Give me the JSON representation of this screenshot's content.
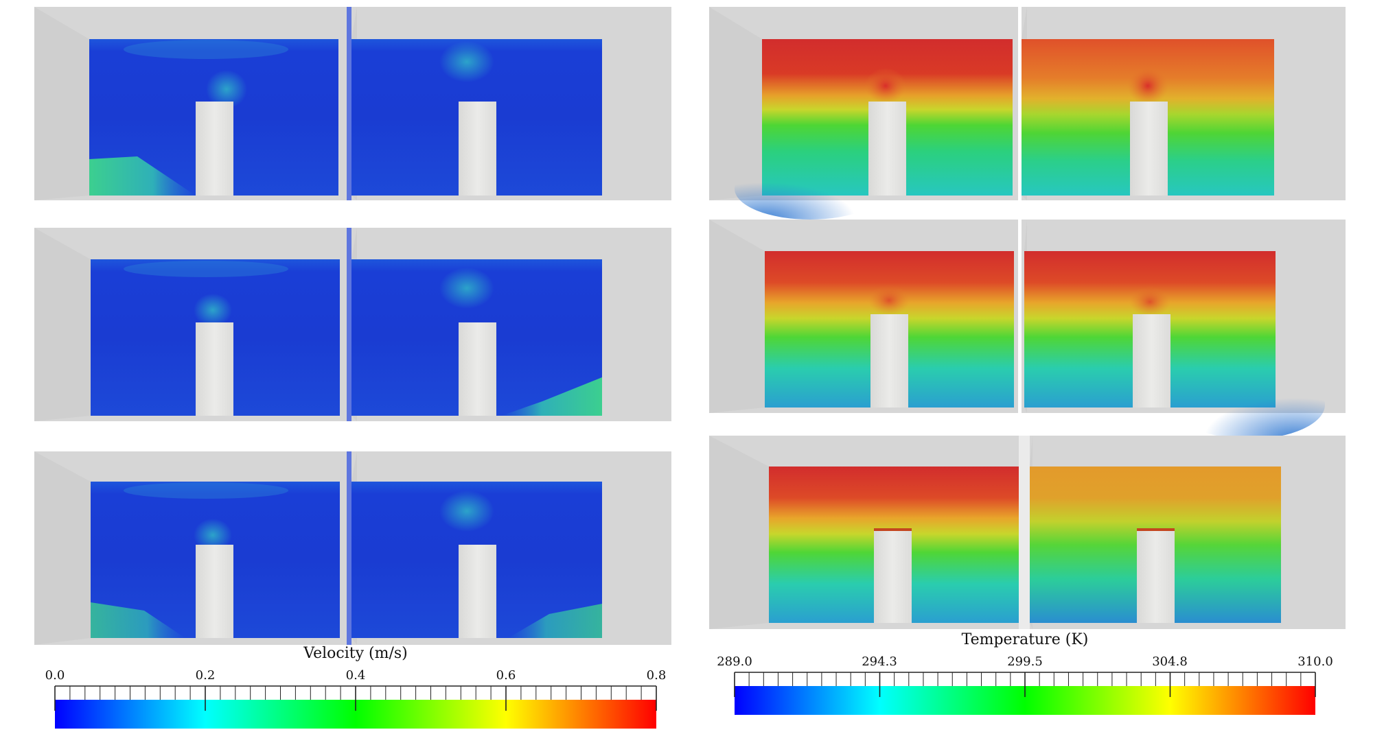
{
  "velocity_legend": {
    "title": "Velocity (m/s)",
    "min": 0.0,
    "max": 0.8,
    "ticks": [
      "0.0",
      "0.2",
      "0.4",
      "0.6",
      "0.8"
    ],
    "colormap": [
      "#0000ff",
      "#00ffff",
      "#00ff00",
      "#ffff00",
      "#ff0000"
    ]
  },
  "temperature_legend": {
    "title": "Temperature (K)",
    "min": 289.0,
    "max": 310.0,
    "ticks": [
      "289.0",
      "294.3",
      "299.5",
      "304.8",
      "310.0"
    ],
    "colormap": [
      "#0000ff",
      "#00ffff",
      "#00ff00",
      "#ffff00",
      "#ff0000"
    ]
  },
  "field_colors": {
    "velocity_low": "#1a3fd8",
    "velocity_jet": "#3ec9a0",
    "temperature_hot": "#d22d2d",
    "temperature_mid": "#4ad63a",
    "temperature_cold": "#27c7c0",
    "temperature_coldest": "#2a86d0",
    "background_box": "#d6d6d6",
    "obstacle": "#e6e6e4"
  }
}
